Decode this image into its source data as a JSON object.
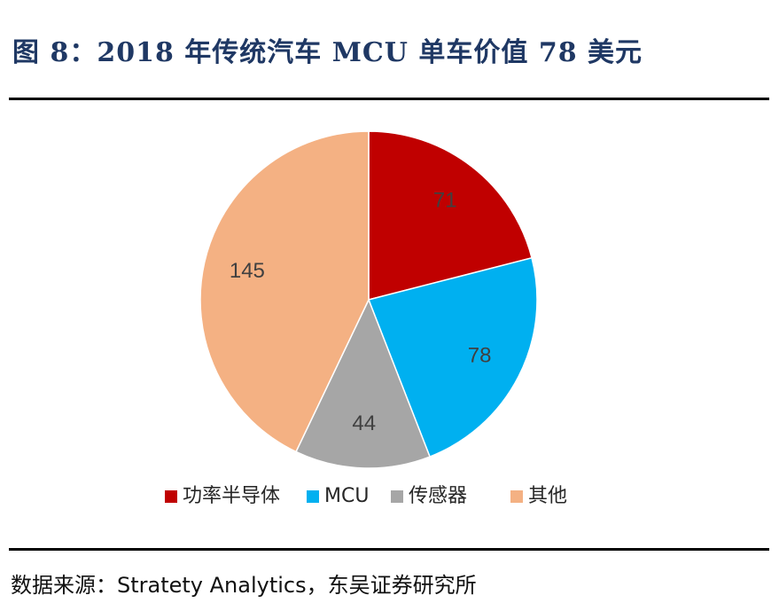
{
  "header": {
    "title": "图 8：2018 年传统汽车 MCU 单车价值 78 美元"
  },
  "chart_data": {
    "type": "pie",
    "title": "",
    "start_angle_deg": 0,
    "direction": "clockwise",
    "slices": [
      {
        "label": "功率半导体",
        "value": 71,
        "color": "#c00000"
      },
      {
        "label": "MCU",
        "value": 78,
        "color": "#00b0f0"
      },
      {
        "label": "传感器",
        "value": 44,
        "color": "#a6a6a6"
      },
      {
        "label": "其他",
        "value": 145,
        "color": "#f4b183"
      }
    ],
    "data_labels": true,
    "legend": {
      "placement": "bottom"
    }
  },
  "footer": {
    "source": "数据来源：Stratety Analytics，东吴证券研究所"
  }
}
